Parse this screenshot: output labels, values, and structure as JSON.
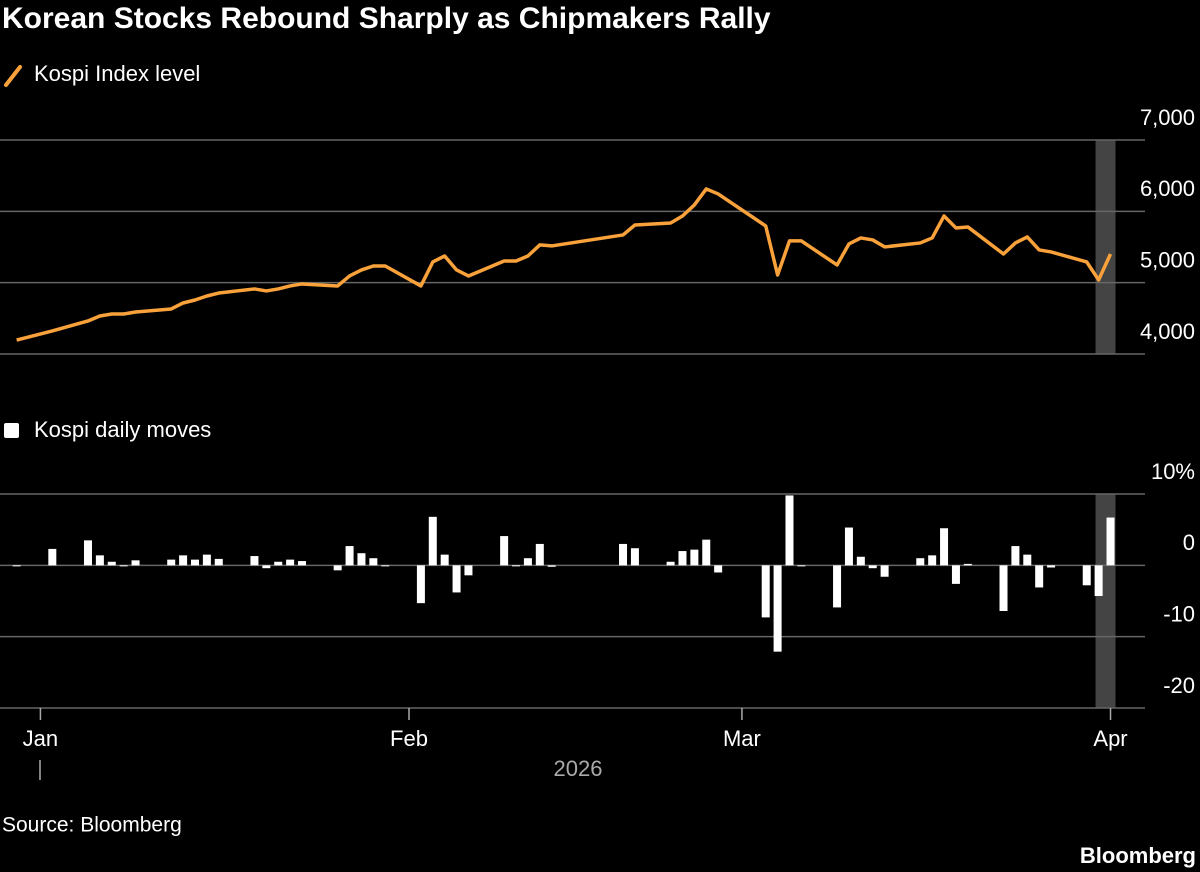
{
  "title": "Korean Stocks Rebound Sharply as Chipmakers Rally",
  "source": "Source: Bloomberg",
  "brand": "Bloomberg",
  "chart_data": [
    {
      "type": "line",
      "series": [
        {
          "name": "Kospi Index level",
          "color": "#f9a13a",
          "values": [
            4196,
            4323,
            4463,
            4533,
            4561,
            4561,
            4589,
            4631,
            4715,
            4757,
            4813,
            4855,
            4912,
            4884,
            4912,
            4954,
            4982,
            4954,
            5094,
            5178,
            5234,
            5234,
            4954,
            5290,
            5374,
            5178,
            5094,
            5304,
            5304,
            5374,
            5529,
            5515,
            5669,
            5809,
            5837,
            5935,
            6090,
            6314,
            6244,
            5795,
            5108,
            5585,
            5585,
            5248,
            5543,
            5627,
            5599,
            5501,
            5557,
            5627,
            5935,
            5767,
            5781,
            5402,
            5557,
            5641,
            5459,
            5431,
            5290,
            5038,
            5402
          ]
        }
      ],
      "x": [
        -2,
        1,
        4,
        5,
        6,
        7,
        8,
        11,
        12,
        13,
        14,
        15,
        18,
        19,
        20,
        21,
        22,
        25,
        26,
        27,
        28,
        29,
        32,
        33,
        34,
        35,
        36,
        39,
        40,
        41,
        42,
        43,
        49,
        50,
        53,
        54,
        55,
        56,
        57,
        61,
        62,
        63,
        64,
        67,
        68,
        69,
        70,
        71,
        74,
        75,
        76,
        77,
        78,
        81,
        82,
        83,
        84,
        85,
        88,
        89,
        90
      ],
      "xlim": [
        -3.4,
        92.9
      ],
      "ylim": [
        4000,
        7000
      ],
      "yticks": [
        {
          "value": 4000,
          "label": "4,000"
        },
        {
          "value": 5000,
          "label": "5,000"
        },
        {
          "value": 6000,
          "label": "6,000"
        },
        {
          "value": 7000,
          "label": "7,000"
        }
      ],
      "grid": true
    },
    {
      "type": "bar",
      "series": [
        {
          "name": "Kospi daily moves",
          "color": "#ffffff",
          "values": [
            0,
            2.3,
            3.5,
            1.4,
            0.5,
            0,
            0.7,
            0.8,
            1.4,
            0.8,
            1.5,
            0.9,
            1.3,
            -0.4,
            0.5,
            0.8,
            0.6,
            -0.7,
            2.7,
            1.7,
            1.0,
            0,
            -5.3,
            6.8,
            1.5,
            -3.8,
            -1.4,
            4.1,
            0,
            1.0,
            3.0,
            -0.2,
            3.0,
            2.4,
            0.5,
            2.0,
            2.2,
            3.6,
            -1.0,
            -7.3,
            -12.1,
            9.8,
            0,
            -5.9,
            5.3,
            1.2,
            -0.4,
            -1.6,
            1.0,
            1.4,
            5.2,
            -2.6,
            0.2,
            -6.4,
            2.7,
            1.5,
            -3.1,
            -0.3,
            -2.8,
            -4.3,
            6.7
          ]
        }
      ],
      "x": [
        -2,
        1,
        4,
        5,
        6,
        7,
        8,
        11,
        12,
        13,
        14,
        15,
        18,
        19,
        20,
        21,
        22,
        25,
        26,
        27,
        28,
        29,
        32,
        33,
        34,
        35,
        36,
        39,
        40,
        41,
        42,
        43,
        49,
        50,
        53,
        54,
        55,
        56,
        57,
        61,
        62,
        63,
        64,
        67,
        68,
        69,
        70,
        71,
        74,
        75,
        76,
        77,
        78,
        81,
        82,
        83,
        84,
        85,
        88,
        89,
        90
      ],
      "xlim": [
        -3.4,
        92.9
      ],
      "xticks": [
        {
          "value": 0,
          "label": "Jan"
        },
        {
          "value": 31,
          "label": "Feb"
        },
        {
          "value": 59,
          "label": "Mar"
        },
        {
          "value": 90,
          "label": "Apr"
        }
      ],
      "xlabel": "2026",
      "ylim": [
        -20,
        10
      ],
      "yticks": [
        -20,
        -10,
        0,
        {
          "value": 10,
          "label": "10%"
        }
      ],
      "grid": true
    }
  ]
}
